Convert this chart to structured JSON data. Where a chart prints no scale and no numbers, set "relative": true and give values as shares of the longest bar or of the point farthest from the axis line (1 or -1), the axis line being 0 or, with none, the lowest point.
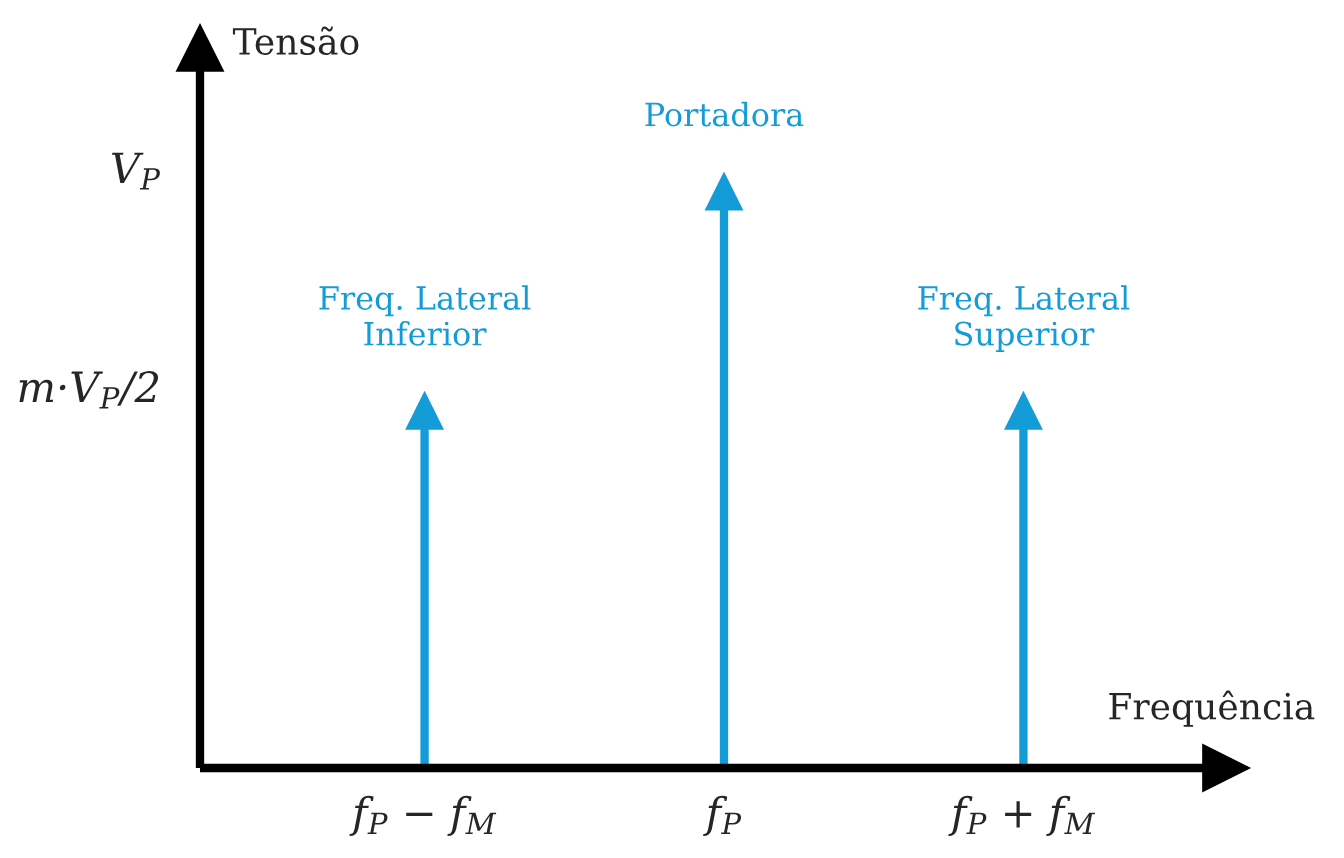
{
  "chart_data": {
    "type": "lollipop",
    "relative": true,
    "categories": [
      "f$_{P}$ − f$_{M}$",
      "f$_{P}$",
      "f$_{P}$ + f$_{M}$"
    ],
    "values": [
      0.62,
      1,
      0.62
    ],
    "color": "#139cd8",
    "marker": "triangle",
    "xlabel": "Frequência",
    "ylabel": "Tensão",
    "annotations": [
      "V$_{P}$",
      "m·V$_{P}$/2",
      {
        "text": "Freq. Lateral\nInferior",
        "x": "f$_{P}$ − f$_{M}$",
        "y": 0.62
      },
      {
        "text": "Portadora",
        "x": "f$_{P}$",
        "y": 1
      },
      {
        "text": "Freq. Lateral\nSuperior",
        "x": "f$_{P}$ + f$_{M}$",
        "y": 0.62
      }
    ]
  }
}
